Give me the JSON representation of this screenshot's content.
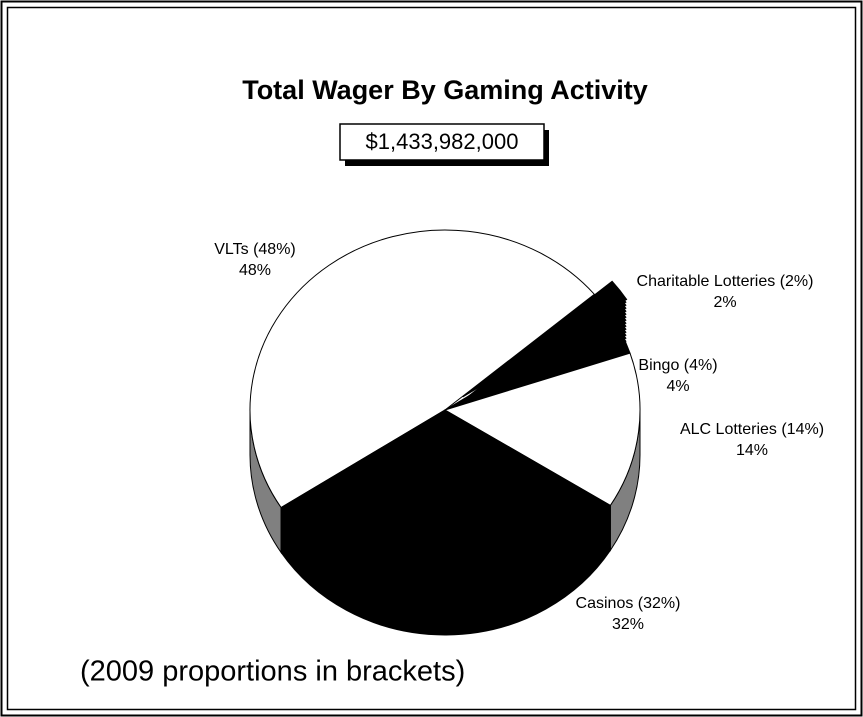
{
  "chart_data": {
    "type": "pie",
    "title": "Total Wager By Gaming Activity",
    "subtitle": "$1,433,982,000",
    "categories": [
      "VLTs (48%)",
      "Charitable Lotteries (2%)",
      "Bingo (4%)",
      "ALC Lotteries (14%)",
      "Casinos (32%)"
    ],
    "values": [
      48,
      2,
      4,
      14,
      32
    ],
    "value_labels": [
      "48%",
      "2%",
      "4%",
      "14%",
      "32%"
    ],
    "colors": [
      "#ffffff",
      "#000000",
      "#000000",
      "#ffffff",
      "#000000"
    ],
    "annotation": "(2009 proportions in brackets)"
  }
}
